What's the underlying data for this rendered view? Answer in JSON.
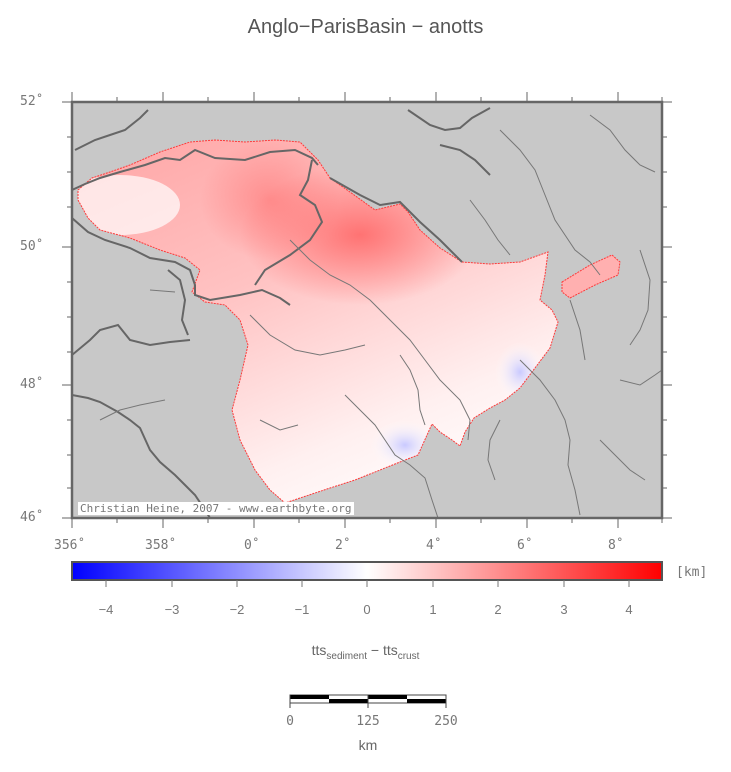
{
  "title": "Anglo−ParisBasin − anotts",
  "credit": "Christian Heine, 2007 - www.earthbyte.org",
  "lat_labels": [
    "52˚",
    "50˚",
    "48˚",
    "46˚"
  ],
  "lon_labels": [
    "356˚",
    "358˚",
    "0˚",
    "2˚",
    "4˚",
    "6˚",
    "8˚"
  ],
  "colorbar": {
    "unit": "[km]",
    "ticks": [
      "−4",
      "−3",
      "−2",
      "−1",
      "0",
      "1",
      "2",
      "3",
      "4"
    ],
    "low_color": "#0000ff",
    "high_color": "#ff0000"
  },
  "formula": {
    "a": "tts",
    "a_sub": "sediment",
    "op": " − ",
    "b": "tts",
    "b_sub": "crust"
  },
  "scale": {
    "labels": [
      "0",
      "125",
      "250"
    ],
    "unit": "km"
  },
  "colors": {
    "land": "#c8c8c8",
    "border": "#666666",
    "basin_outline": "#ff0000"
  }
}
